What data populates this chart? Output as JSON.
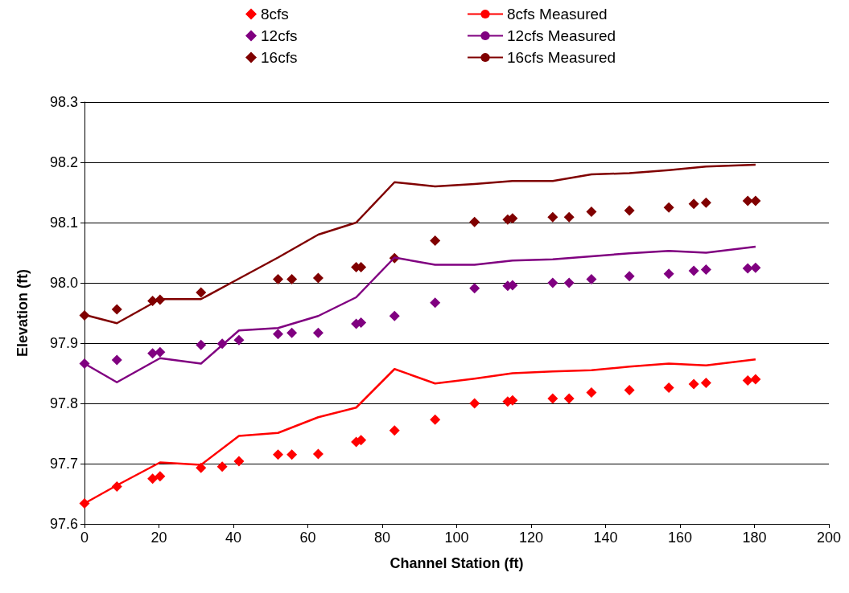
{
  "chart_data": {
    "type": "scatter",
    "xlabel": "Channel Station (ft)",
    "ylabel": "Elevation (ft)",
    "xlim": [
      0,
      200
    ],
    "xticks": [
      0,
      20,
      40,
      60,
      80,
      100,
      120,
      140,
      160,
      180,
      200
    ],
    "ylim": [
      97.6,
      98.3
    ],
    "yticks": [
      97.6,
      97.7,
      97.8,
      97.9,
      {
        "value": 98,
        "label": "98.0"
      },
      98.1,
      98.2,
      98.3
    ],
    "grid": "y",
    "legend": "top",
    "marker": "diamond",
    "x": [
      0,
      8.7,
      18.3,
      20.3,
      31.3,
      37,
      41.5,
      52,
      55.7,
      62.8,
      73,
      74.3,
      83.3,
      94.2,
      104.8,
      113.7,
      115,
      125.8,
      130.2,
      136.2,
      146.4,
      157,
      163.7,
      167,
      178.2,
      180.3
    ],
    "series": [
      {
        "name": "8cfs",
        "color": "#ff0000",
        "values": [
          97.634,
          97.662,
          97.675,
          97.679,
          97.693,
          97.695,
          97.704,
          97.715,
          97.715,
          97.716,
          97.736,
          97.739,
          97.755,
          97.773,
          97.8,
          97.803,
          97.805,
          97.808,
          97.808,
          97.818,
          97.822,
          97.826,
          97.832,
          97.834,
          97.838,
          97.84
        ]
      },
      {
        "name": "12cfs",
        "color": "#800080",
        "values": [
          97.866,
          97.872,
          97.883,
          97.885,
          97.897,
          97.899,
          97.905,
          97.915,
          97.917,
          97.917,
          97.932,
          97.934,
          97.945,
          97.967,
          97.991,
          97.995,
          97.996,
          98.0,
          98.0,
          98.006,
          98.011,
          98.015,
          98.02,
          98.022,
          98.024,
          98.025
        ]
      },
      {
        "name": "16cfs",
        "color": "#800000",
        "x": [
          0,
          8.7,
          18.3,
          20.3,
          31.3,
          52,
          55.7,
          62.8,
          73,
          74.3,
          83.3,
          94.2,
          104.8,
          113.7,
          115,
          125.8,
          130.2,
          136.2,
          146.4,
          157,
          163.7,
          167,
          178.2,
          180.3
        ],
        "values": [
          97.946,
          97.956,
          97.97,
          97.972,
          97.984,
          98.006,
          98.006,
          98.008,
          98.026,
          98.026,
          98.041,
          98.07,
          98.101,
          98.105,
          98.107,
          98.109,
          98.109,
          98.118,
          98.12,
          98.125,
          98.131,
          98.133,
          98.136,
          98.136
        ]
      },
      {
        "name": "8cfs Measured",
        "type": "line",
        "marker": "none",
        "color": "#ff0000",
        "x": [
          0,
          8.7,
          20.3,
          31.3,
          41.5,
          52,
          62.8,
          73,
          83.3,
          94.2,
          104.8,
          115,
          125.8,
          136.2,
          146.4,
          157,
          167,
          180.3
        ],
        "values": [
          97.634,
          97.664,
          97.702,
          97.698,
          97.746,
          97.751,
          97.777,
          97.793,
          97.857,
          97.833,
          97.841,
          97.85,
          97.853,
          97.855,
          97.861,
          97.866,
          97.863,
          97.873
        ]
      },
      {
        "name": "12cfs Measured",
        "type": "line",
        "marker": "none",
        "color": "#800080",
        "x": [
          0,
          8.7,
          20.3,
          31.3,
          41.5,
          52,
          62.8,
          73,
          83.3,
          94.2,
          104.8,
          115,
          125.8,
          136.2,
          146.4,
          157,
          167,
          180.3
        ],
        "values": [
          97.866,
          97.835,
          97.875,
          97.866,
          97.921,
          97.925,
          97.945,
          97.976,
          98.042,
          98.03,
          98.03,
          98.037,
          98.039,
          98.044,
          98.049,
          98.053,
          98.05,
          98.06
        ]
      },
      {
        "name": "16cfs Measured",
        "type": "line",
        "marker": "none",
        "color": "#800000",
        "x": [
          0,
          8.7,
          20.3,
          31.3,
          41.5,
          52,
          62.8,
          73,
          83.3,
          94.2,
          104.8,
          115,
          125.8,
          136.2,
          146.4,
          157,
          167,
          180.3
        ],
        "values": [
          97.947,
          97.933,
          97.973,
          97.973,
          98.007,
          98.042,
          98.08,
          98.1,
          98.167,
          98.16,
          98.164,
          98.169,
          98.169,
          98.18,
          98.182,
          98.187,
          98.193,
          98.196
        ]
      }
    ]
  }
}
